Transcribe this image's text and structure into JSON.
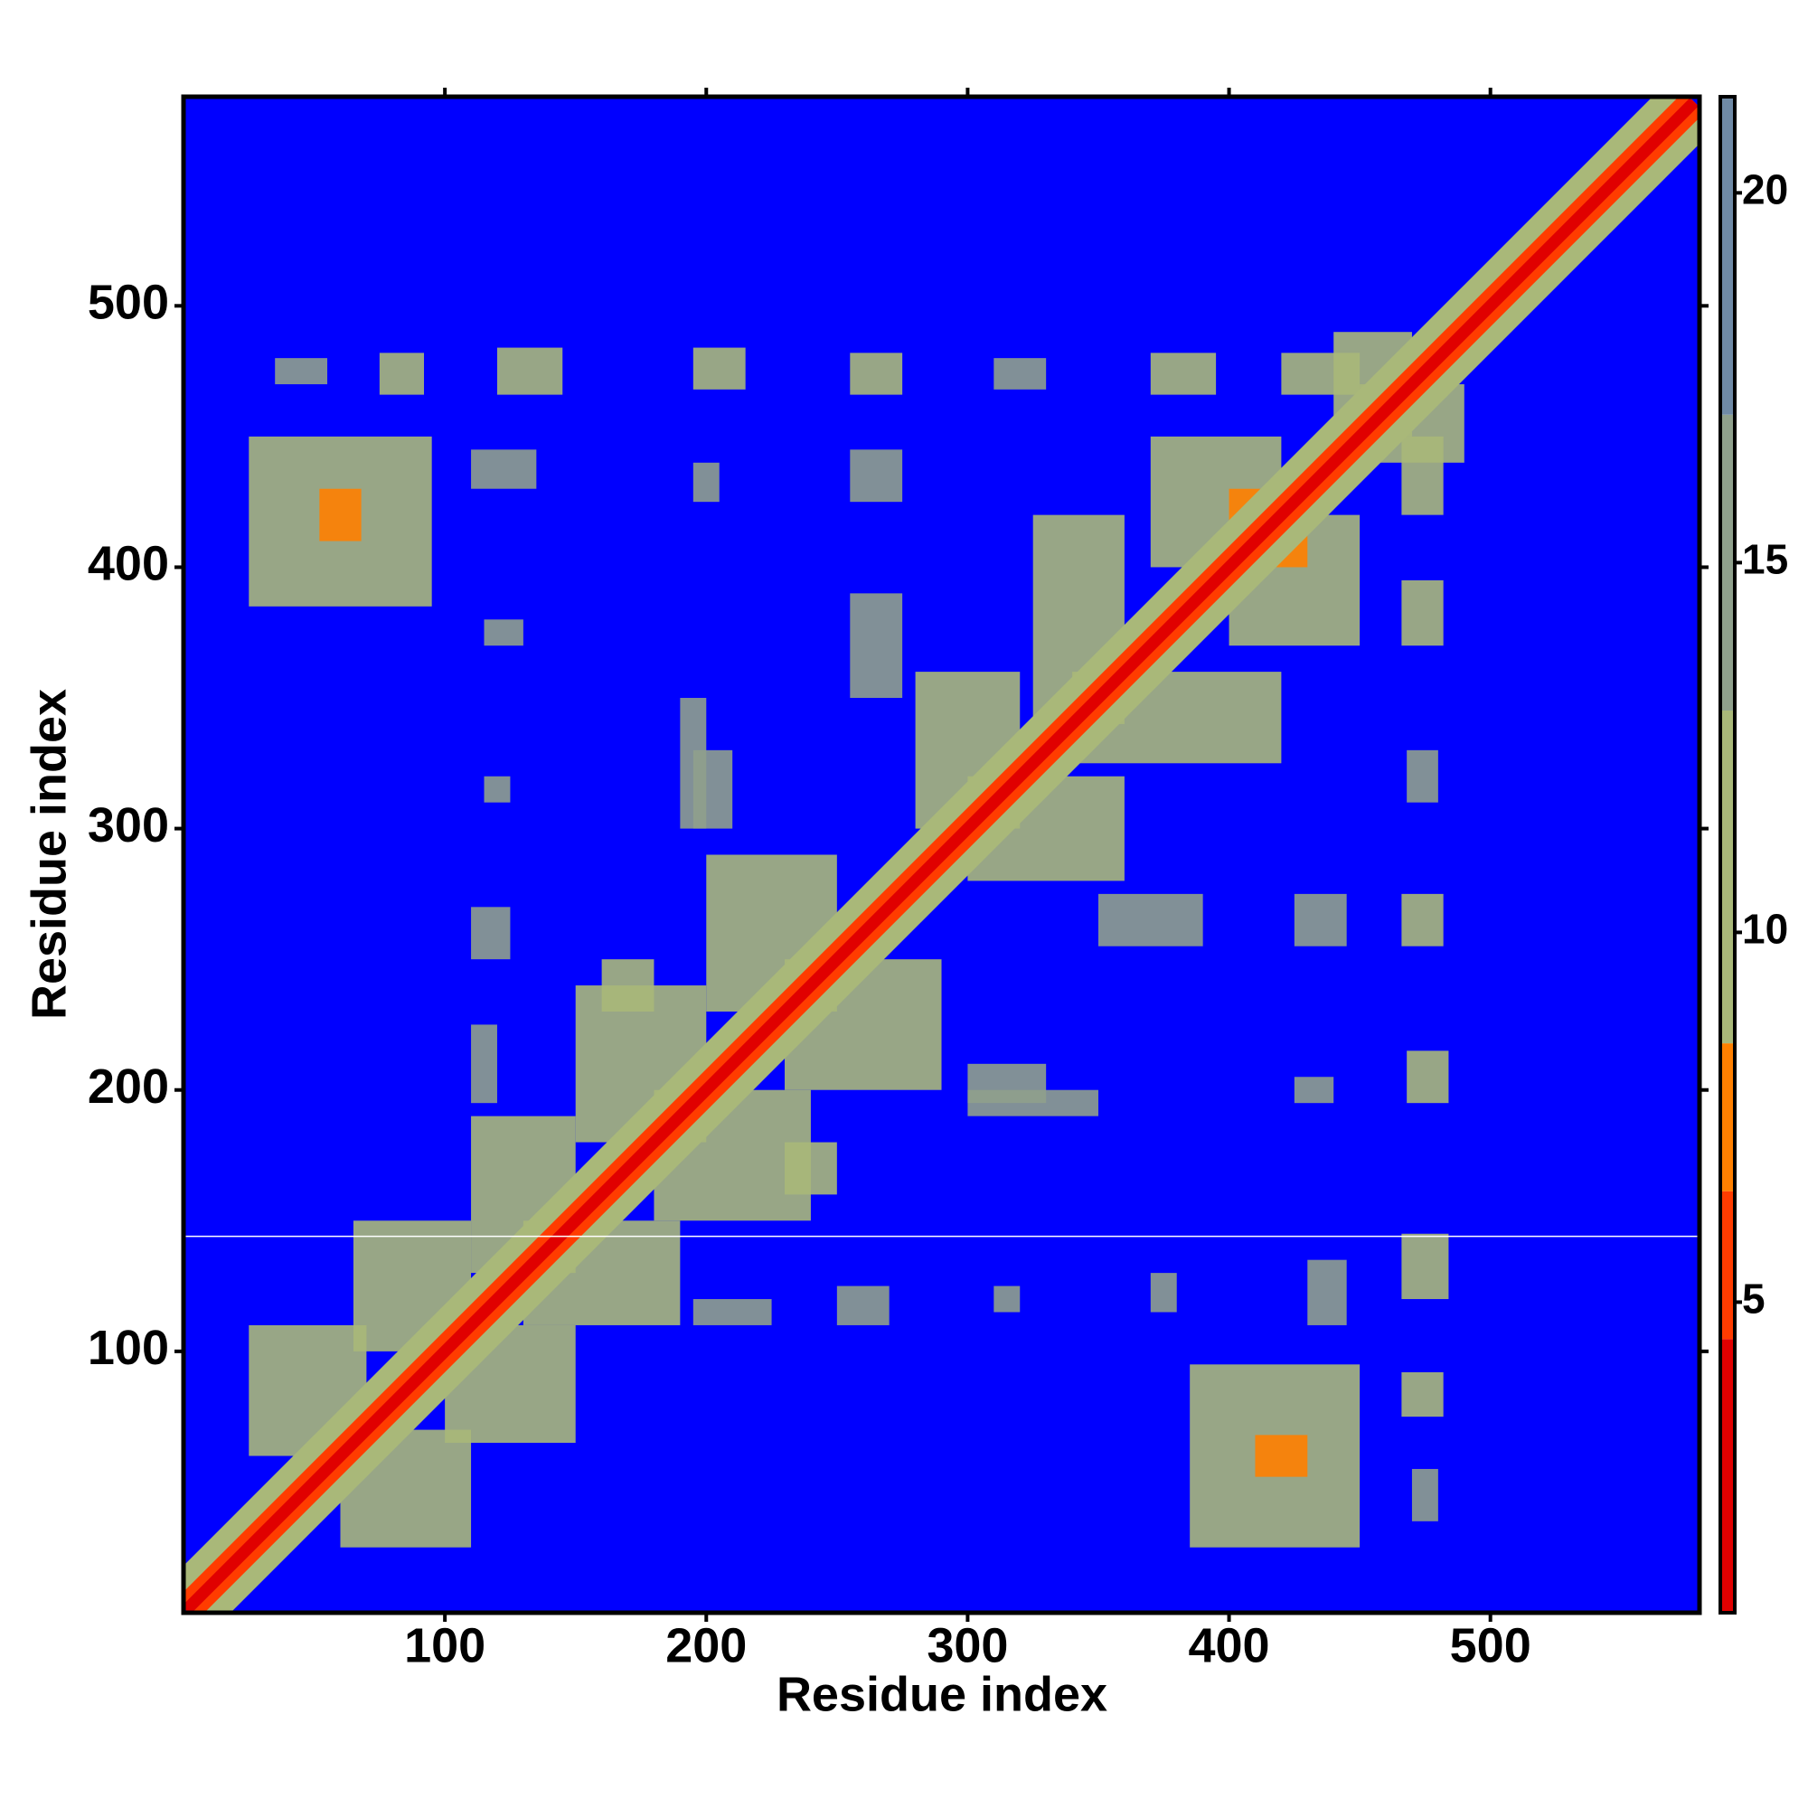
{
  "chart_data": {
    "type": "heatmap",
    "xlabel": "Residue index",
    "ylabel": "Residue index",
    "xlim": [
      0,
      580
    ],
    "ylim": [
      0,
      580
    ],
    "xticks": [
      100,
      200,
      300,
      400,
      500
    ],
    "yticks": [
      100,
      200,
      300,
      400,
      500
    ],
    "zlim": [
      0.8,
      21.3
    ],
    "zticks": [
      5,
      10,
      15,
      20
    ],
    "background_color": "#0000ff",
    "colorscale": [
      {
        "value": 0.8,
        "color": "#e00000"
      },
      {
        "value": 4.5,
        "color": "#ff3c00"
      },
      {
        "value": 6.5,
        "color": "#ff8000"
      },
      {
        "value": 8.5,
        "color": "#a9b879"
      },
      {
        "value": 13,
        "color": "#8fa08c"
      },
      {
        "value": 17,
        "color": "#6f8aa6"
      }
    ],
    "symmetric": true,
    "diagonal": {
      "from": 1,
      "to": 578,
      "values": [
        11,
        6,
        2
      ]
    },
    "hline": 144,
    "regions": [
      {
        "x": [
          25,
          95
        ],
        "y": [
          385,
          450
        ],
        "value": 12
      },
      {
        "x": [
          52,
          68
        ],
        "y": [
          410,
          430
        ],
        "value": 7
      },
      {
        "x": [
          35,
          55
        ],
        "y": [
          470,
          480
        ],
        "value": 14
      },
      {
        "x": [
          75,
          92
        ],
        "y": [
          466,
          482
        ],
        "value": 12
      },
      {
        "x": [
          120,
          145
        ],
        "y": [
          466,
          484
        ],
        "value": 12
      },
      {
        "x": [
          195,
          215
        ],
        "y": [
          468,
          484
        ],
        "value": 12
      },
      {
        "x": [
          255,
          275
        ],
        "y": [
          466,
          482
        ],
        "value": 12
      },
      {
        "x": [
          310,
          330
        ],
        "y": [
          468,
          480
        ],
        "value": 13
      },
      {
        "x": [
          370,
          395
        ],
        "y": [
          466,
          482
        ],
        "value": 12
      },
      {
        "x": [
          420,
          450
        ],
        "y": [
          466,
          482
        ],
        "value": 12
      },
      {
        "x": [
          110,
          135
        ],
        "y": [
          430,
          445
        ],
        "value": 13
      },
      {
        "x": [
          195,
          205
        ],
        "y": [
          425,
          440
        ],
        "value": 14
      },
      {
        "x": [
          255,
          275
        ],
        "y": [
          425,
          445
        ],
        "value": 13
      },
      {
        "x": [
          115,
          130
        ],
        "y": [
          370,
          380
        ],
        "value": 14
      },
      {
        "x": [
          370,
          420
        ],
        "y": [
          400,
          450
        ],
        "value": 12
      },
      {
        "x": [
          325,
          360
        ],
        "y": [
          340,
          420
        ],
        "value": 12
      },
      {
        "x": [
          280,
          320
        ],
        "y": [
          300,
          360
        ],
        "value": 12
      },
      {
        "x": [
          200,
          250
        ],
        "y": [
          230,
          290
        ],
        "value": 12
      },
      {
        "x": [
          150,
          200
        ],
        "y": [
          180,
          240
        ],
        "value": 12
      },
      {
        "x": [
          110,
          150
        ],
        "y": [
          130,
          190
        ],
        "value": 12
      },
      {
        "x": [
          65,
          110
        ],
        "y": [
          100,
          150
        ],
        "value": 12
      },
      {
        "x": [
          25,
          70
        ],
        "y": [
          60,
          110
        ],
        "value": 12
      },
      {
        "x": [
          110,
          120
        ],
        "y": [
          195,
          225
        ],
        "value": 13
      },
      {
        "x": [
          110,
          125
        ],
        "y": [
          250,
          270
        ],
        "value": 13
      },
      {
        "x": [
          115,
          125
        ],
        "y": [
          310,
          320
        ],
        "value": 13
      },
      {
        "x": [
          195,
          210
        ],
        "y": [
          300,
          330
        ],
        "value": 13
      },
      {
        "x": [
          160,
          180
        ],
        "y": [
          230,
          250
        ],
        "value": 12
      },
      {
        "x": [
          255,
          275
        ],
        "y": [
          350,
          390
        ],
        "value": 13
      },
      {
        "x": [
          190,
          200
        ],
        "y": [
          300,
          350
        ],
        "value": 13
      },
      {
        "x": [
          440,
          470
        ],
        "y": [
          450,
          490
        ],
        "value": 12
      },
      {
        "x": [
          400,
          420
        ],
        "y": [
          410,
          430
        ],
        "value": 7
      }
    ]
  }
}
